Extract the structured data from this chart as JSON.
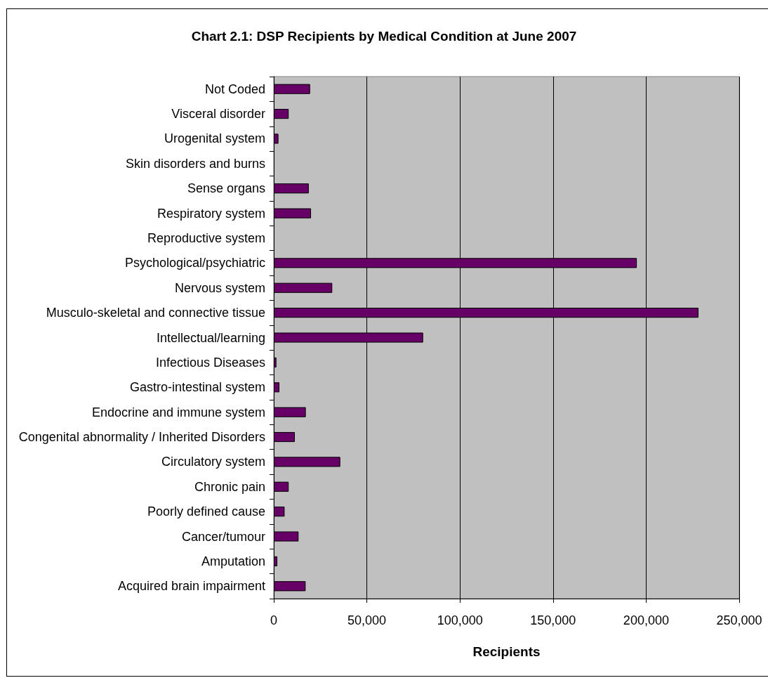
{
  "chart_data": {
    "type": "bar",
    "orientation": "horizontal",
    "title": "Chart 2.1: DSP Recipients by Medical Condition at June 2007",
    "xlabel": "Recipients",
    "categories": [
      "Not Coded",
      "Visceral disorder",
      "Urogenital system",
      "Skin disorders and burns",
      "Sense organs",
      "Respiratory system",
      "Reproductive system",
      "Psychological/psychiatric",
      "Nervous system",
      "Musculo-skeletal and connective tissue",
      "Intellectual/learning",
      "Infectious Diseases",
      "Gastro-intestinal system",
      "Endocrine and immune system",
      "Congenital abnormality / Inherited Disorders",
      "Circulatory system",
      "Chronic pain",
      "Poorly defined cause",
      "Cancer/tumour",
      "Amputation",
      "Acquired brain impairment"
    ],
    "values": [
      19500,
      8000,
      2500,
      null,
      18800,
      20000,
      null,
      195000,
      31400,
      228100,
      80200,
      1400,
      3000,
      17200,
      11300,
      35700,
      8000,
      5800,
      13300,
      1900,
      17100
    ],
    "color": "#660066",
    "xlim": [
      0,
      250000
    ],
    "xticks": [
      0,
      {
        "value": 50000,
        "label": "50,000"
      },
      {
        "value": 100000,
        "label": "100,000"
      },
      {
        "value": 150000,
        "label": "150,000"
      },
      {
        "value": 200000,
        "label": "200,000"
      },
      {
        "value": 250000,
        "label": "250,000"
      }
    ],
    "grid": "x"
  }
}
